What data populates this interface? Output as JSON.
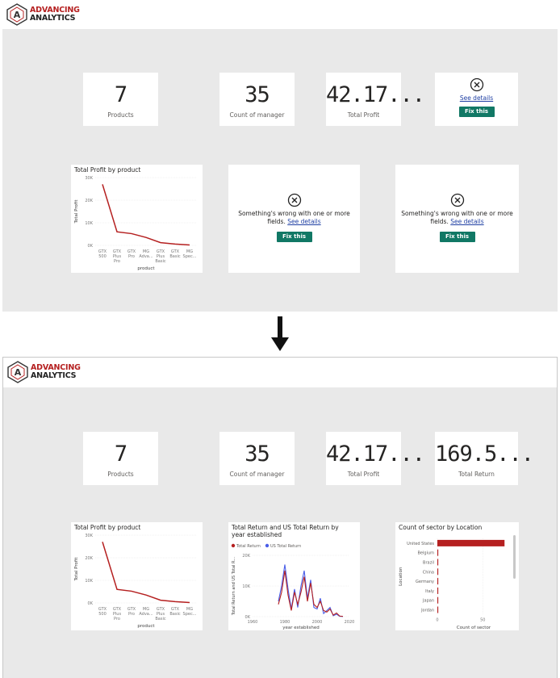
{
  "logo": {
    "line1": "ADVANCING",
    "line2": "ANALYTICS"
  },
  "before": {
    "kpis": [
      {
        "value": "7",
        "label": "Products"
      },
      {
        "value": "35",
        "label": "Count of manager"
      },
      {
        "value": "42.17...",
        "label": "Total Profit"
      }
    ],
    "error_card_small": {
      "link": "See details",
      "button": "Fix this"
    },
    "error_card_large": {
      "message": "Something's wrong with one or more",
      "message2": "fields.",
      "link": "See details",
      "button": "Fix this"
    }
  },
  "after": {
    "kpis": [
      {
        "value": "7",
        "label": "Products"
      },
      {
        "value": "35",
        "label": "Count of manager"
      },
      {
        "value": "42.17...",
        "label": "Total Profit"
      },
      {
        "value": "169.5...",
        "label": "Total Return"
      }
    ]
  },
  "profit_chart": {
    "title": "Total Profit by product",
    "chart_data": {
      "type": "line",
      "title": "Total Profit by product",
      "xlabel": "product",
      "ylabel": "Total Profit",
      "categories": [
        "GTX 500",
        "GTX Plus Pro",
        "GTX Pro",
        "MG Adva...",
        "GTX Plus Basic",
        "GTX Basic",
        "MG Spec..."
      ],
      "values": [
        27000,
        6000,
        5200,
        3500,
        1200,
        600,
        200
      ],
      "yticks": [
        "30K",
        "20K",
        "10K",
        "0K"
      ],
      "ylim": [
        0,
        30000
      ],
      "color": "#b52020"
    }
  },
  "return_chart": {
    "title": "Total Return and US Total Return by year established",
    "legend": [
      "Total Return",
      "US Total Return"
    ],
    "chart_data": {
      "type": "line",
      "title": "Total Return and US Total Return by year established",
      "xlabel": "year established",
      "ylabel": "Total Return and US Total R...",
      "xticks": [
        "1960",
        "1980",
        "2000",
        "2020"
      ],
      "yticks": [
        "20K",
        "10K",
        "0K"
      ],
      "xlim": [
        1960,
        2020
      ],
      "ylim": [
        0,
        20000
      ],
      "series": [
        {
          "name": "Total Return",
          "color": "#b52020",
          "x": [
            1976,
            1978,
            1980,
            1982,
            1984,
            1986,
            1988,
            1990,
            1992,
            1994,
            1996,
            1998,
            2000,
            2002,
            2004,
            2006,
            2008,
            2010,
            2012,
            2014,
            2016
          ],
          "y": [
            4000,
            8000,
            15000,
            7000,
            2000,
            8000,
            4000,
            8000,
            13000,
            5000,
            11000,
            4000,
            3000,
            5000,
            2000,
            1500,
            2500,
            500,
            1200,
            200,
            100
          ]
        },
        {
          "name": "US Total Return",
          "color": "#4a5ee8",
          "x": [
            1976,
            1978,
            1980,
            1982,
            1984,
            1986,
            1988,
            1990,
            1992,
            1994,
            1996,
            1998,
            2000,
            2002,
            2004,
            2006,
            2008,
            2010,
            2012,
            2014,
            2016
          ],
          "y": [
            5000,
            10000,
            17000,
            9000,
            2500,
            9000,
            3000,
            10000,
            15000,
            6000,
            12000,
            3000,
            2500,
            6000,
            1000,
            2000,
            3000,
            300,
            800,
            100,
            50
          ]
        }
      ]
    }
  },
  "sector_chart": {
    "title": "Count of sector by Location",
    "chart_data": {
      "type": "bar",
      "title": "Count of sector by Location",
      "xlabel": "Count of sector",
      "ylabel": "Location",
      "categories": [
        "United States",
        "Belgium",
        "Brazil",
        "China",
        "Germany",
        "Italy",
        "Japan",
        "Jordan"
      ],
      "values": [
        74,
        1,
        1,
        1,
        1,
        1,
        1,
        1
      ],
      "xticks": [
        "0",
        "50"
      ],
      "xlim": [
        0,
        80
      ],
      "color": "#b52020"
    }
  }
}
